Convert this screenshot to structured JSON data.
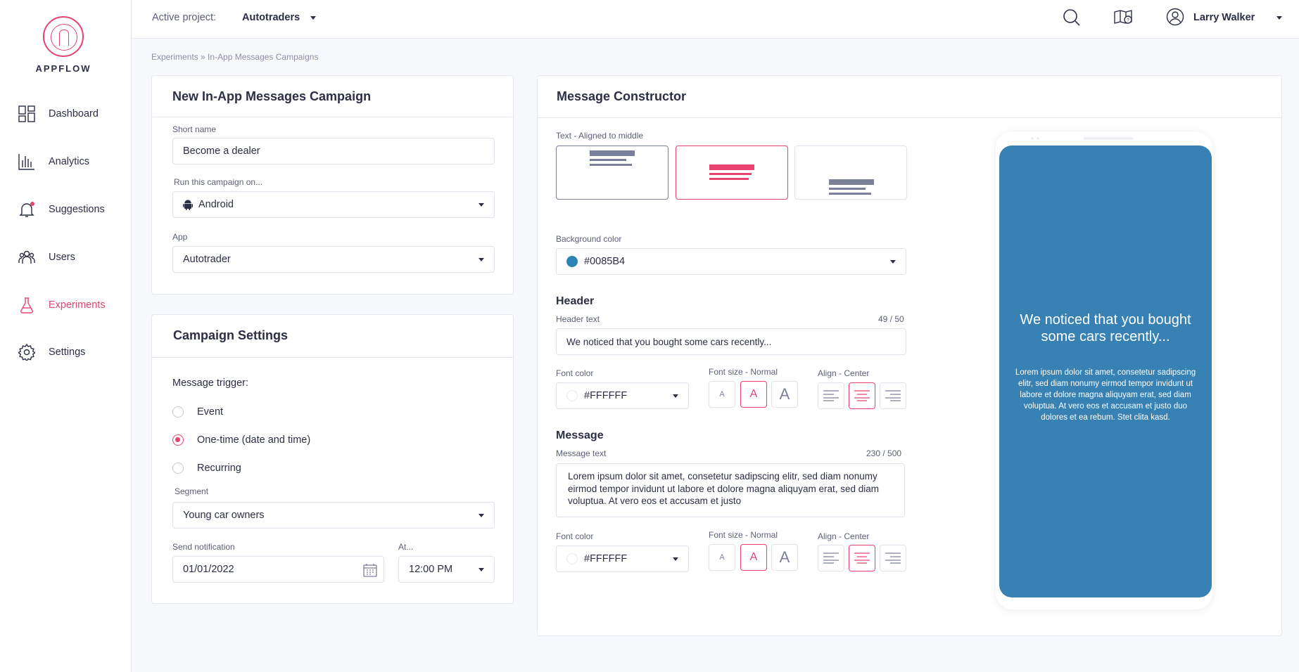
{
  "app": {
    "logo_text": "APPFLOW"
  },
  "sidebar": {
    "items": [
      {
        "label": "Dashboard",
        "icon": "dashboard-icon"
      },
      {
        "label": "Analytics",
        "icon": "analytics-icon"
      },
      {
        "label": "Suggestions",
        "icon": "bell-icon"
      },
      {
        "label": "Users",
        "icon": "users-icon"
      },
      {
        "label": "Experiments",
        "icon": "flask-icon",
        "active": true
      },
      {
        "label": "Settings",
        "icon": "gear-icon"
      }
    ]
  },
  "topbar": {
    "project_label": "Active project:",
    "project_value": "Autotraders",
    "user_name": "Larry Walker"
  },
  "breadcrumb": "Experiments  »  In-App Messages Campaigns",
  "campaign": {
    "title": "New In-App Messages Campaign",
    "short_name_label": "Short name",
    "short_name_value": "Become a dealer",
    "run_on_label": "Run this campaign on...",
    "run_on_value": "Android",
    "app_label": "App",
    "app_value": "Autotrader"
  },
  "settings": {
    "title": "Campaign Settings",
    "trigger_label": "Message trigger:",
    "triggers": [
      {
        "label": "Event",
        "checked": false
      },
      {
        "label": "One-time (date and time)",
        "checked": true
      },
      {
        "label": "Recurring",
        "checked": false
      }
    ],
    "segment_label": "Segment",
    "segment_value": "Young car owners",
    "send_label": "Send notification",
    "send_value": "01/01/2022",
    "at_label": "At...",
    "at_value": "12:00 PM"
  },
  "constructor": {
    "title": "Message Constructor",
    "layout_label": "Text - Aligned to middle",
    "bg_label": "Background color",
    "bg_value": "#0085B4",
    "header_title": "Header",
    "header_text_label": "Header text",
    "header_counter": "49 / 50",
    "header_value": "We noticed that you bought some cars recently...",
    "header_font_color_label": "Font color",
    "header_font_color_value": "#FFFFFF",
    "header_font_size_label": "Font size - Normal",
    "header_align_label": "Align - Center",
    "message_title": "Message",
    "message_text_label": "Message text",
    "message_counter": "230 / 500",
    "message_value": "Lorem ipsum dolor sit amet, consetetur sadipscing elitr, sed diam nonumy eirmod tempor invidunt ut labore et dolore magna aliquyam erat, sed diam voluptua. At vero eos et accusam et justo",
    "message_font_color_label": "Font color",
    "message_font_color_value": "#FFFFFF",
    "message_font_size_label": "Font size - Normal",
    "message_align_label": "Align - Center",
    "font_size_glyph": "A"
  },
  "preview": {
    "header": "We noticed that you bought some cars recently...",
    "body": "Lorem ipsum dolor sit amet, consetetur sadipscing elitr, sed diam nonumy eirmod tempor invidunt ut labore et dolore magna aliquyam erat, sed diam voluptua. At vero eos et accusam et justo duo dolores et ea rebum. Stet clita kasd."
  },
  "colors": {
    "accent": "#e8436e",
    "preview_bg": "#3781b3",
    "swatch_blue": "#2d83b5"
  }
}
